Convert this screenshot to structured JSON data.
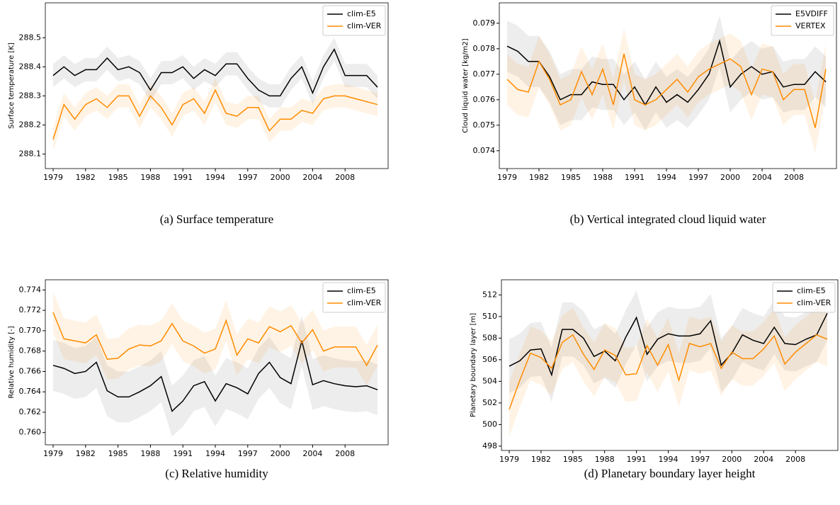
{
  "chart_data": [
    {
      "type": "line",
      "caption": "(a) Surface temperature",
      "y_label": "Surface temperature [K]",
      "legend": "upper right",
      "categories": [
        "1979",
        null,
        null,
        "1982",
        null,
        null,
        "1985",
        null,
        null,
        "1988",
        null,
        null,
        "1991",
        null,
        null,
        "1994",
        null,
        null,
        "1997",
        null,
        null,
        "2000",
        null,
        null,
        "2004",
        null,
        null,
        "2008",
        null,
        null,
        null
      ],
      "ylim": [
        288.05,
        288.62
      ],
      "yticks": [
        288.1,
        288.2,
        288.3,
        288.4,
        288.5
      ],
      "series": [
        {
          "name": "clim-E5",
          "color": "#000000",
          "std": 0.04,
          "values": [
            288.37,
            288.4,
            288.37,
            288.39,
            288.39,
            288.43,
            288.39,
            288.4,
            288.38,
            288.32,
            288.38,
            288.38,
            288.4,
            288.36,
            288.39,
            288.37,
            288.41,
            288.41,
            288.36,
            288.32,
            288.3,
            288.3,
            288.36,
            288.4,
            288.31,
            288.4,
            288.46,
            288.37,
            288.37,
            288.37,
            288.33
          ]
        },
        {
          "name": "clim-VER",
          "color": "#ff8c00",
          "std": 0.04,
          "values": [
            288.15,
            288.27,
            288.22,
            288.27,
            288.29,
            288.26,
            288.3,
            288.3,
            288.23,
            288.3,
            288.26,
            288.2,
            288.27,
            288.29,
            288.24,
            288.32,
            288.24,
            288.23,
            288.26,
            288.26,
            288.18,
            288.22,
            288.22,
            288.25,
            288.24,
            288.29,
            288.3,
            288.3,
            288.29,
            288.28,
            288.27
          ]
        }
      ]
    },
    {
      "type": "line",
      "caption": "(b) Vertical integrated cloud liquid water",
      "y_label": "Cloud liquid water [kg/m2]",
      "legend": "upper right",
      "categories": [
        "1979",
        null,
        null,
        "1982",
        null,
        null,
        "1985",
        null,
        null,
        "1988",
        null,
        null,
        "1991",
        null,
        null,
        "1994",
        null,
        null,
        "1997",
        null,
        null,
        "2000",
        null,
        null,
        "2004",
        null,
        null,
        "2008",
        null,
        null,
        null
      ],
      "ylim": [
        0.0733,
        0.0798
      ],
      "yticks": [
        0.074,
        0.075,
        0.076,
        0.077,
        0.078,
        0.079
      ],
      "series": [
        {
          "name": "E5VDIFF",
          "color": "#000000",
          "std": 0.001,
          "values": [
            0.0781,
            0.0779,
            0.0775,
            0.0775,
            0.0769,
            0.076,
            0.0762,
            0.0762,
            0.0767,
            0.0766,
            0.0766,
            0.076,
            0.0765,
            0.0758,
            0.0765,
            0.0759,
            0.0762,
            0.0759,
            0.0764,
            0.077,
            0.0783,
            0.0765,
            0.077,
            0.0773,
            0.077,
            0.0771,
            0.0765,
            0.0766,
            0.0766,
            0.0771,
            0.0767
          ]
        },
        {
          "name": "VERTEX",
          "color": "#ff8c00",
          "std": 0.001,
          "values": [
            0.0768,
            0.0764,
            0.0763,
            0.0775,
            0.0768,
            0.0758,
            0.076,
            0.0771,
            0.0762,
            0.0772,
            0.0758,
            0.0778,
            0.076,
            0.0758,
            0.076,
            0.0764,
            0.0768,
            0.0763,
            0.0769,
            0.0772,
            0.0774,
            0.0776,
            0.0773,
            0.0762,
            0.0772,
            0.0771,
            0.076,
            0.0764,
            0.0764,
            0.0749,
            0.0772
          ]
        }
      ]
    },
    {
      "type": "line",
      "caption": "(c) Relative humidity",
      "y_label": "Relative humidity [-]",
      "legend": "upper right",
      "categories": [
        "1979",
        null,
        null,
        "1982",
        null,
        null,
        "1985",
        null,
        null,
        "1988",
        null,
        null,
        "1991",
        null,
        null,
        "1994",
        null,
        null,
        "1997",
        null,
        null,
        "2000",
        null,
        null,
        "2004",
        null,
        null,
        "2008",
        null,
        null,
        null
      ],
      "ylim": [
        0.7588,
        0.775
      ],
      "yticks": [
        {
          "value": 0.76,
          "label": "0.760"
        },
        0.762,
        0.764,
        0.766,
        0.768,
        {
          "value": 0.77,
          "label": "0.770"
        },
        0.772,
        0.774
      ],
      "series": [
        {
          "name": "clim-E5",
          "color": "#000000",
          "std": 0.0025,
          "values": [
            0.7666,
            0.7663,
            0.7658,
            0.766,
            0.7669,
            0.7641,
            0.7635,
            0.7635,
            0.764,
            0.7646,
            0.7655,
            0.7621,
            0.7631,
            0.7646,
            0.765,
            0.7631,
            0.7648,
            0.7644,
            0.7638,
            0.7658,
            0.7669,
            0.7654,
            0.7648,
            0.769,
            0.7647,
            0.7651,
            0.7648,
            0.7646,
            0.7645,
            0.7646,
            0.7642
          ]
        },
        {
          "name": "clim-VER",
          "color": "#ff8c00",
          "std": 0.002,
          "values": [
            0.7718,
            0.7692,
            0.769,
            0.7688,
            0.7696,
            0.7672,
            0.7673,
            0.7682,
            0.7686,
            0.7685,
            0.769,
            0.7707,
            0.769,
            0.7685,
            0.7678,
            0.7682,
            0.771,
            0.7676,
            0.7692,
            0.7688,
            0.7704,
            0.7699,
            0.7705,
            0.7688,
            0.7701,
            0.768,
            0.7684,
            0.7684,
            0.7684,
            0.7666,
            0.7686
          ]
        }
      ]
    },
    {
      "type": "line",
      "caption": "(d) Planetary boundary layer height",
      "y_label": "Planetary boundary layer [m]",
      "legend": "upper right",
      "categories": [
        "1979",
        null,
        null,
        "1982",
        null,
        null,
        "1985",
        null,
        null,
        "1988",
        null,
        null,
        "1991",
        null,
        null,
        "1994",
        null,
        null,
        "1997",
        null,
        null,
        "2000",
        null,
        null,
        "2004",
        null,
        null,
        "2008",
        null,
        null,
        null
      ],
      "ylim": [
        497.6,
        513.4
      ],
      "yticks": [
        498,
        500,
        502,
        504,
        506,
        508,
        510,
        512
      ],
      "series": [
        {
          "name": "clim-E5",
          "color": "#000000",
          "std": 2.5,
          "values": [
            505.4,
            505.9,
            506.9,
            507.0,
            504.6,
            508.8,
            508.8,
            508.0,
            506.3,
            506.8,
            505.9,
            508.1,
            509.9,
            506.5,
            507.9,
            508.4,
            508.2,
            508.2,
            508.4,
            509.6,
            505.5,
            506.6,
            508.3,
            507.8,
            507.5,
            509.0,
            507.5,
            507.4,
            507.9,
            508.3,
            510.3
          ]
        },
        {
          "name": "clim-VER",
          "color": "#ff8c00",
          "std": 2.5,
          "values": [
            501.4,
            504.1,
            506.6,
            506.2,
            505.2,
            507.6,
            508.3,
            506.5,
            505.1,
            506.9,
            506.4,
            504.6,
            504.7,
            507.3,
            505.5,
            507.4,
            504.1,
            507.5,
            507.2,
            507.5,
            505.2,
            506.7,
            506.1,
            506.1,
            507.0,
            508.2,
            505.6,
            506.7,
            507.5,
            508.3,
            507.9
          ]
        }
      ]
    }
  ]
}
